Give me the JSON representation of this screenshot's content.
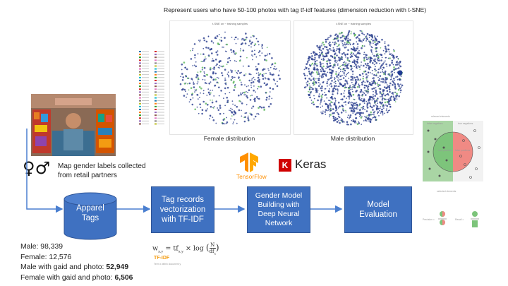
{
  "title": "Represent users who have 50-100 photos with tag tf-idf features (dimension reduction with t-SNE)",
  "plots": {
    "female": {
      "caption": "Female distribution",
      "plot_title": "t-SNE on ~ training samples"
    },
    "male": {
      "caption": "Male distribution",
      "plot_title": "t-SNE on ~ training samples"
    }
  },
  "gender_step": {
    "text_line1": "Map gender labels collected",
    "text_line2": "from retail partners",
    "symbols": "♀♂"
  },
  "boxes": {
    "apparel": {
      "line1": "Apparel",
      "line2": "Tags"
    },
    "vectorization": {
      "line1": "Tag records",
      "line2": "vectorization",
      "line3": "with TF-IDF"
    },
    "model": {
      "line1": "Gender Model",
      "line2": "Building with",
      "line3": "Deep Neural",
      "line4": "Network"
    },
    "evaluation": {
      "line1": "Model",
      "line2": "Evaluation"
    }
  },
  "frameworks": {
    "tensorflow": "TensorFlow",
    "keras_letter": "K",
    "keras": "Keras"
  },
  "formula": {
    "label": "TF-IDF",
    "sub": "Term x within document y"
  },
  "stats": {
    "male_label": "Male: 98,339",
    "female_label": "Female: 12,576",
    "male_photo_label": "Male with gaid and photo: ",
    "male_photo_value": "52,949",
    "female_photo_label": "Female with gaid and photo: ",
    "female_photo_value": "6,506"
  },
  "precision_recall": {
    "relevant": "relevant elements",
    "false_negatives": "false negatives",
    "true_negatives": "true negatives",
    "true_positives": "true positives",
    "false_positives": "false positives",
    "selected": "selected elements",
    "precision": "Precision =",
    "recall": "Recall ="
  },
  "colors": {
    "box": "#3f71c1",
    "arrow": "#4a7fd0",
    "keras": "#d00000",
    "tf": "#ff8f00"
  }
}
